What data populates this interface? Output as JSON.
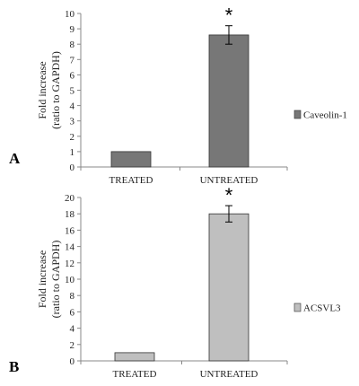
{
  "chart_data": [
    {
      "type": "bar",
      "panel_label": "A",
      "categories": [
        "TREATED",
        "UNTREATED"
      ],
      "series": [
        {
          "name": "Caveolin-1",
          "values": [
            1,
            8.6
          ],
          "errors": [
            0,
            0.6
          ],
          "color": "#777777"
        }
      ],
      "ylabel": [
        "Fold increase",
        "(ratio to GAPDH)"
      ],
      "ylim": [
        0,
        10
      ],
      "yticks": [
        0,
        1,
        2,
        3,
        4,
        5,
        6,
        7,
        8,
        9,
        10
      ],
      "annotations": [
        {
          "category": "UNTREATED",
          "text": "*"
        }
      ],
      "legend_position": "right",
      "grid": false
    },
    {
      "type": "bar",
      "panel_label": "B",
      "categories": [
        "TREATED",
        "UNTREATED"
      ],
      "series": [
        {
          "name": "ACSVL3",
          "values": [
            1,
            18
          ],
          "errors": [
            0,
            1
          ],
          "color": "#bfbfbf"
        }
      ],
      "ylabel": [
        "Fold increase",
        "(ratio to GAPDH)"
      ],
      "ylim": [
        0,
        20
      ],
      "yticks": [
        0,
        2,
        4,
        6,
        8,
        10,
        12,
        14,
        16,
        18,
        20
      ],
      "annotations": [
        {
          "category": "UNTREATED",
          "text": "*"
        }
      ],
      "legend_position": "right",
      "grid": false
    }
  ]
}
